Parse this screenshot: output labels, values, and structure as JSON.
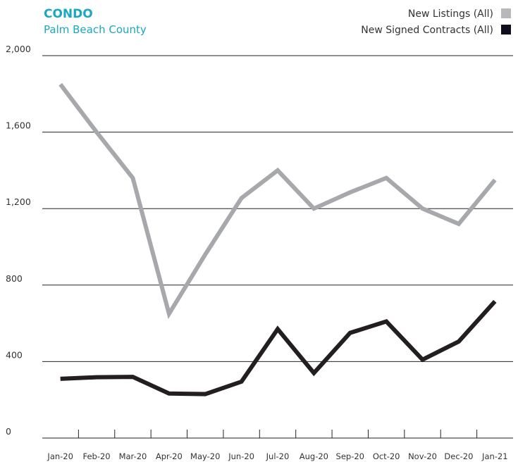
{
  "chart_data": {
    "type": "line",
    "title": "CONDO",
    "subtitle": "Palm Beach County",
    "categories": [
      "Jan-20",
      "Feb-20",
      "Mar-20",
      "Apr-20",
      "May-20",
      "Jun-20",
      "Jul-20",
      "Aug-20",
      "Sep-20",
      "Oct-20",
      "Nov-20",
      "Dec-20",
      "Jan-21"
    ],
    "series": [
      {
        "name": "New Listings (All)",
        "color": "#a7a8ab",
        "values": [
          1850,
          1600,
          1360,
          650,
          960,
          1255,
          1400,
          1200,
          1285,
          1360,
          1200,
          1120,
          1350
        ]
      },
      {
        "name": "New Signed Contracts (All)",
        "color": "#231f20",
        "values": [
          310,
          318,
          320,
          233,
          230,
          295,
          570,
          340,
          550,
          610,
          410,
          505,
          715
        ]
      }
    ],
    "ylim": [
      0,
      2000
    ],
    "yticks": [
      0,
      400,
      800,
      {
        "value": 1200,
        "label": "1,200"
      },
      {
        "value": 1600,
        "label": "1,600"
      },
      {
        "value": 2000,
        "label": "2,000"
      }
    ],
    "grid": true,
    "legend": "top-right"
  }
}
